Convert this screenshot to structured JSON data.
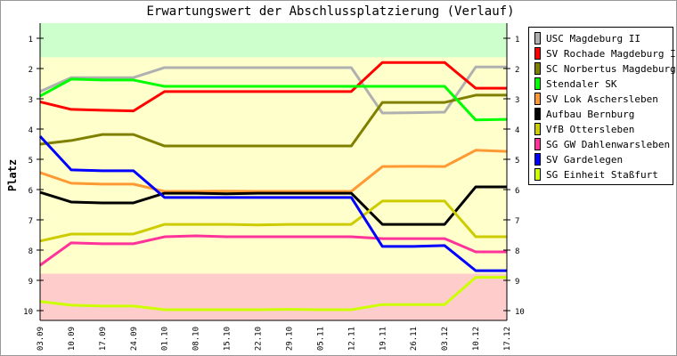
{
  "chart_data": {
    "type": "line",
    "title": "Erwartungswert der Abschlussplatzierung (Verlauf)",
    "xlabel": "",
    "ylabel": "Platz",
    "ylim": [
      1,
      10
    ],
    "y_inverted": true,
    "yticks": [
      "1",
      "2",
      "3",
      "4",
      "5",
      "6",
      "7",
      "8",
      "9",
      "10"
    ],
    "categories": [
      "03.09",
      "10.09",
      "17.09",
      "24.09",
      "01.10",
      "08.10",
      "15.10",
      "22.10",
      "29.10",
      "05.11",
      "12.11",
      "19.11",
      "26.11",
      "03.12",
      "10.12",
      "17.12"
    ],
    "bands": [
      {
        "name": "promotion",
        "color": "#ccffcc",
        "from": 0.5,
        "to": 1.63
      },
      {
        "name": "midfield",
        "color": "#ffffcc",
        "from": 1.63,
        "to": 8.78
      },
      {
        "name": "relegation",
        "color": "#ffcccc",
        "from": 8.78,
        "to": 10.5
      }
    ],
    "legend_position": "right",
    "series": [
      {
        "name": "USC Magdeburg II",
        "color": "#b0b0b0",
        "values": [
          2.76,
          2.3,
          2.3,
          2.3,
          1.97,
          1.97,
          1.97,
          1.97,
          1.97,
          1.97,
          1.97,
          3.47,
          3.46,
          3.44,
          1.95,
          1.95
        ]
      },
      {
        "name": "SV Rochade Magdeburg II",
        "color": "#ff0000",
        "values": [
          3.1,
          3.35,
          3.38,
          3.4,
          2.76,
          2.76,
          2.76,
          2.76,
          2.76,
          2.76,
          2.76,
          1.8,
          1.8,
          1.8,
          2.65,
          2.65
        ]
      },
      {
        "name": "SC Norbertus Magdeburg",
        "color": "#808000",
        "values": [
          4.5,
          4.38,
          4.18,
          4.18,
          4.56,
          4.56,
          4.56,
          4.56,
          4.56,
          4.56,
          4.56,
          3.12,
          3.12,
          3.12,
          2.88,
          2.88
        ]
      },
      {
        "name": "Stendaler SK",
        "color": "#00ff00",
        "values": [
          2.91,
          2.35,
          2.38,
          2.38,
          2.59,
          2.59,
          2.59,
          2.59,
          2.59,
          2.59,
          2.59,
          2.59,
          2.59,
          2.59,
          3.7,
          3.68
        ]
      },
      {
        "name": "SV Lok Aschersleben",
        "color": "#ff9933",
        "values": [
          5.44,
          5.79,
          5.82,
          5.82,
          6.06,
          6.06,
          6.05,
          6.06,
          6.06,
          6.06,
          6.06,
          5.24,
          5.23,
          5.24,
          4.7,
          4.74
        ]
      },
      {
        "name": "Aufbau Bernburg",
        "color": "#000000",
        "values": [
          6.09,
          6.41,
          6.44,
          6.44,
          6.12,
          6.12,
          6.14,
          6.12,
          6.12,
          6.12,
          6.12,
          7.15,
          7.15,
          7.15,
          5.91,
          5.91
        ]
      },
      {
        "name": "VfB Ottersleben",
        "color": "#cccc00",
        "values": [
          7.7,
          7.47,
          7.47,
          7.47,
          7.15,
          7.15,
          7.15,
          7.17,
          7.15,
          7.15,
          7.15,
          6.38,
          6.38,
          6.38,
          7.56,
          7.56
        ]
      },
      {
        "name": "SG GW Dahlenwarsleben",
        "color": "#ff3399",
        "values": [
          8.5,
          7.76,
          7.79,
          7.79,
          7.56,
          7.53,
          7.56,
          7.56,
          7.56,
          7.56,
          7.56,
          7.62,
          7.62,
          7.62,
          8.06,
          8.06
        ]
      },
      {
        "name": "SV Gardelegen",
        "color": "#0000ff",
        "values": [
          4.24,
          5.35,
          5.38,
          5.38,
          6.26,
          6.26,
          6.26,
          6.26,
          6.26,
          6.26,
          6.26,
          7.88,
          7.88,
          7.85,
          8.68,
          8.68
        ]
      },
      {
        "name": "SG Einheit Staßfurt",
        "color": "#ccff00",
        "values": [
          9.7,
          9.82,
          9.85,
          9.85,
          9.97,
          9.97,
          9.97,
          9.97,
          9.96,
          9.97,
          9.97,
          9.8,
          9.8,
          9.8,
          8.9,
          8.9
        ]
      }
    ]
  }
}
